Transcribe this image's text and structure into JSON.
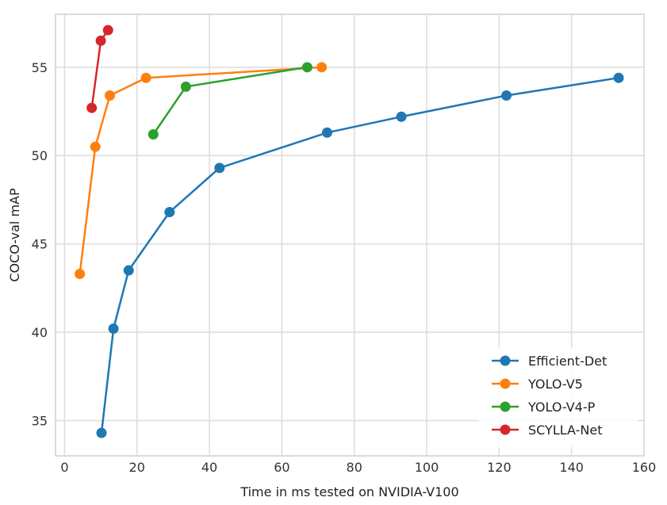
{
  "chart_data": {
    "type": "line",
    "title": "",
    "xlabel": "Time in ms tested on NVIDIA-V100",
    "ylabel": "COCO-val mAP",
    "xlim": [
      -2.5,
      160
    ],
    "ylim": [
      33,
      58
    ],
    "xticks": [
      0,
      20,
      40,
      60,
      80,
      100,
      120,
      140,
      160
    ],
    "yticks": [
      35,
      40,
      45,
      50,
      55
    ],
    "grid": true,
    "legend_position": "lower-right",
    "series": [
      {
        "name": "Efficient-Det",
        "color": "#1f77b4",
        "x": [
          10.2,
          13.5,
          17.7,
          29.0,
          42.8,
          72.5,
          93.0,
          122.0,
          153.0
        ],
        "y": [
          34.3,
          40.2,
          43.5,
          46.8,
          49.3,
          51.3,
          52.2,
          53.4,
          54.4
        ]
      },
      {
        "name": "YOLO-V5",
        "color": "#ff7f0e",
        "x": [
          4.2,
          8.5,
          12.5,
          22.5,
          71.0
        ],
        "y": [
          43.3,
          50.5,
          53.4,
          54.4,
          55.0
        ]
      },
      {
        "name": "YOLO-V4-P",
        "color": "#2ca02c",
        "x": [
          24.5,
          33.5,
          67.0
        ],
        "y": [
          51.2,
          53.9,
          55.0
        ]
      },
      {
        "name": "SCYLLA-Net",
        "color": "#d62728",
        "x": [
          7.5,
          10.0,
          12.0
        ],
        "y": [
          52.7,
          56.5,
          57.1
        ]
      }
    ]
  }
}
